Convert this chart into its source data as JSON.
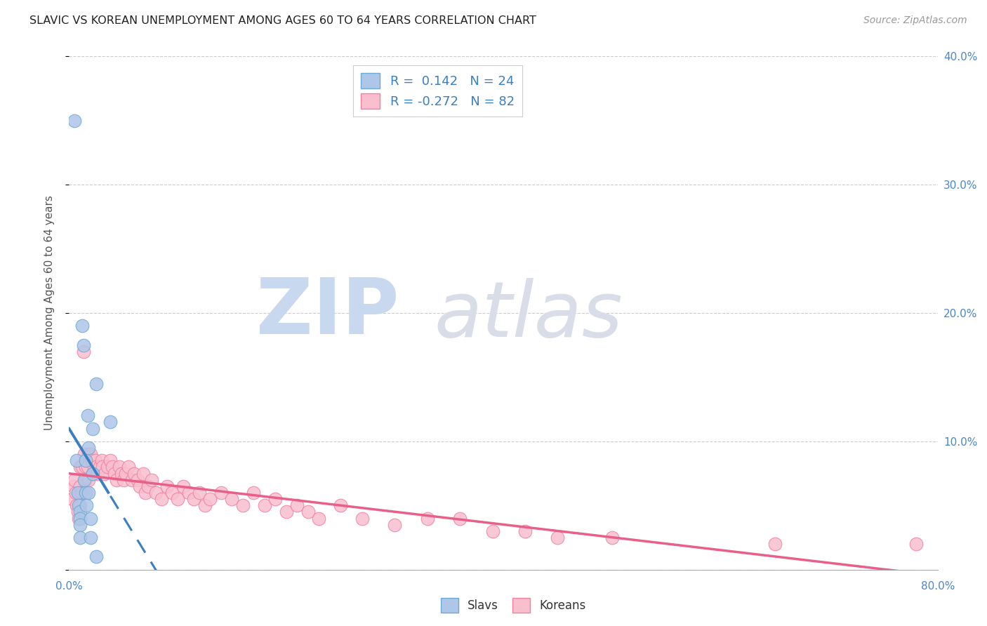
{
  "title": "SLAVIC VS KOREAN UNEMPLOYMENT AMONG AGES 60 TO 64 YEARS CORRELATION CHART",
  "source": "Source: ZipAtlas.com",
  "ylabel": "Unemployment Among Ages 60 to 64 years",
  "xlim": [
    0,
    0.8
  ],
  "ylim": [
    0,
    0.4
  ],
  "xtick_positions": [
    0.0,
    0.8
  ],
  "xtick_labels": [
    "0.0%",
    "80.0%"
  ],
  "ytick_positions": [
    0.0,
    0.1,
    0.2,
    0.3,
    0.4
  ],
  "ytick_labels_right": [
    "",
    "10.0%",
    "20.0%",
    "30.0%",
    "40.0%"
  ],
  "background_color": "#ffffff",
  "grid_color": "#cccccc",
  "slavs_fill_color": "#aec6e8",
  "koreans_fill_color": "#f9bfcf",
  "slavs_edge_color": "#6aaad4",
  "koreans_edge_color": "#f080a0",
  "slavs_line_color": "#3a7fc1",
  "koreans_line_color": "#e8608a",
  "legend_slavs_R": "0.142",
  "legend_slavs_N": "24",
  "legend_koreans_R": "-0.272",
  "legend_koreans_N": "82",
  "slavs_x": [
    0.005,
    0.007,
    0.008,
    0.009,
    0.01,
    0.01,
    0.01,
    0.01,
    0.012,
    0.013,
    0.014,
    0.015,
    0.015,
    0.016,
    0.017,
    0.018,
    0.018,
    0.02,
    0.02,
    0.022,
    0.022,
    0.025,
    0.025,
    0.038
  ],
  "slavs_y": [
    0.35,
    0.085,
    0.06,
    0.05,
    0.045,
    0.04,
    0.035,
    0.025,
    0.19,
    0.175,
    0.07,
    0.085,
    0.06,
    0.05,
    0.12,
    0.095,
    0.06,
    0.04,
    0.025,
    0.11,
    0.075,
    0.145,
    0.01,
    0.115
  ],
  "koreans_x": [
    0.003,
    0.004,
    0.005,
    0.006,
    0.007,
    0.008,
    0.009,
    0.01,
    0.01,
    0.01,
    0.011,
    0.012,
    0.012,
    0.013,
    0.014,
    0.015,
    0.015,
    0.016,
    0.017,
    0.018,
    0.018,
    0.02,
    0.021,
    0.022,
    0.023,
    0.024,
    0.025,
    0.026,
    0.028,
    0.03,
    0.031,
    0.033,
    0.035,
    0.038,
    0.04,
    0.042,
    0.044,
    0.046,
    0.048,
    0.05,
    0.052,
    0.055,
    0.058,
    0.06,
    0.063,
    0.065,
    0.068,
    0.07,
    0.073,
    0.076,
    0.08,
    0.085,
    0.09,
    0.095,
    0.1,
    0.105,
    0.11,
    0.115,
    0.12,
    0.125,
    0.13,
    0.14,
    0.15,
    0.16,
    0.17,
    0.18,
    0.19,
    0.2,
    0.21,
    0.22,
    0.23,
    0.25,
    0.27,
    0.3,
    0.33,
    0.36,
    0.39,
    0.42,
    0.45,
    0.5,
    0.65,
    0.78
  ],
  "koreans_y": [
    0.055,
    0.065,
    0.07,
    0.06,
    0.05,
    0.045,
    0.04,
    0.08,
    0.065,
    0.05,
    0.06,
    0.08,
    0.06,
    0.17,
    0.09,
    0.08,
    0.07,
    0.085,
    0.08,
    0.09,
    0.07,
    0.09,
    0.085,
    0.075,
    0.08,
    0.085,
    0.08,
    0.075,
    0.08,
    0.085,
    0.08,
    0.075,
    0.08,
    0.085,
    0.08,
    0.075,
    0.07,
    0.08,
    0.075,
    0.07,
    0.075,
    0.08,
    0.07,
    0.075,
    0.07,
    0.065,
    0.075,
    0.06,
    0.065,
    0.07,
    0.06,
    0.055,
    0.065,
    0.06,
    0.055,
    0.065,
    0.06,
    0.055,
    0.06,
    0.05,
    0.055,
    0.06,
    0.055,
    0.05,
    0.06,
    0.05,
    0.055,
    0.045,
    0.05,
    0.045,
    0.04,
    0.05,
    0.04,
    0.035,
    0.04,
    0.04,
    0.03,
    0.03,
    0.025,
    0.025,
    0.02,
    0.02
  ]
}
